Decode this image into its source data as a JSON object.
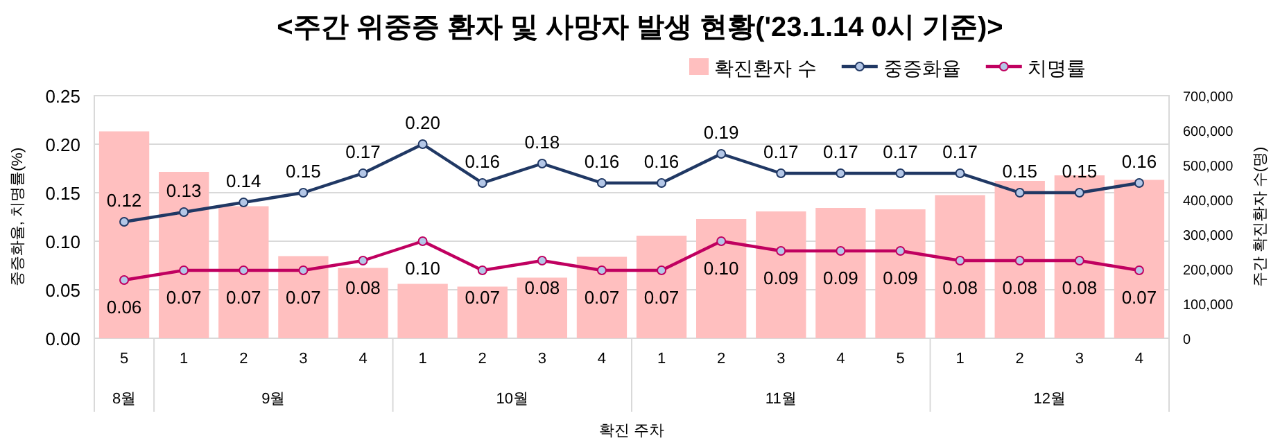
{
  "chart_data": {
    "type": "bar",
    "title": "<주간 위중증 환자 및 사망자 발생 현황('23.1.14 0시 기준)>",
    "xlabel": "확진 주차",
    "ylabel": "중증화율, 치명률(%)",
    "y2label": "주간 확진환자 수(명)",
    "categories": [
      "5",
      "1",
      "2",
      "3",
      "4",
      "1",
      "2",
      "3",
      "4",
      "1",
      "2",
      "3",
      "4",
      "5",
      "1",
      "2",
      "3",
      "4"
    ],
    "annotations": [
      "8월",
      "9월",
      "10월",
      "11월",
      "12월"
    ],
    "series": [
      {
        "name": "확진환자 수",
        "axis": "y2",
        "color": "#ffbfbf",
        "values": [
          597000,
          480000,
          381000,
          237000,
          203000,
          157000,
          149000,
          175000,
          235000,
          296000,
          344000,
          366000,
          376000,
          372000,
          413000,
          454000,
          470000,
          457000
        ]
      },
      {
        "name": "중증화율",
        "type": "line",
        "color": "#203864",
        "values": [
          0.12,
          0.13,
          0.14,
          0.15,
          0.17,
          0.2,
          0.16,
          0.18,
          0.16,
          0.16,
          0.19,
          0.17,
          0.17,
          0.17,
          0.17,
          0.15,
          0.15,
          0.16
        ],
        "value_labels": [
          "0.12",
          "0.13",
          "0.14",
          "0.15",
          "0.17",
          "0.20",
          "0.16",
          "0.18",
          "0.16",
          "0.16",
          "0.19",
          "0.17",
          "0.17",
          "0.17",
          "0.17",
          "0.15",
          "0.15",
          "0.16"
        ]
      },
      {
        "name": "치명률",
        "type": "line",
        "color": "#c00060",
        "values": [
          0.06,
          0.07,
          0.07,
          0.07,
          0.08,
          0.1,
          0.07,
          0.08,
          0.07,
          0.07,
          0.1,
          0.09,
          0.09,
          0.09,
          0.08,
          0.08,
          0.08,
          0.07
        ],
        "value_labels": [
          "0.06",
          "0.07",
          "0.07",
          "0.07",
          "0.08",
          "0.10",
          "0.07",
          "0.08",
          "0.07",
          "0.07",
          "0.10",
          "0.09",
          "0.09",
          "0.09",
          "0.08",
          "0.08",
          "0.08",
          "0.07"
        ]
      }
    ],
    "ylim": [
      0,
      0.25
    ],
    "yticks": [
      {
        "value": 0,
        "label": "0.00"
      },
      {
        "value": 0.05,
        "label": "0.05"
      },
      {
        "value": 0.1,
        "label": "0.10"
      },
      {
        "value": 0.15,
        "label": "0.15"
      },
      {
        "value": 0.2,
        "label": "0.20"
      },
      {
        "value": 0.25,
        "label": "0.25"
      }
    ],
    "y2lim": [
      0,
      700000
    ],
    "y2ticks": [
      0,
      {
        "value": 100000,
        "label": "100,000"
      },
      {
        "value": 200000,
        "label": "200,000"
      },
      {
        "value": 300000,
        "label": "300,000"
      },
      {
        "value": 400000,
        "label": "400,000"
      },
      {
        "value": 500000,
        "label": "500,000"
      },
      {
        "value": 600000,
        "label": "600,000"
      },
      {
        "value": 700000,
        "label": "700,000"
      }
    ],
    "grid": "y",
    "legend": "top right",
    "marker": "circle"
  }
}
